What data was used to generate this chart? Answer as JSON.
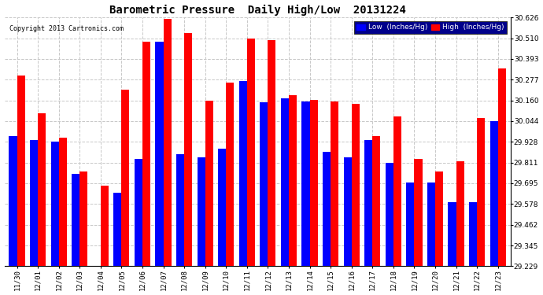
{
  "title": "Barometric Pressure  Daily High/Low  20131224",
  "copyright": "Copyright 2013 Cartronics.com",
  "legend_low": "Low  (Inches/Hg)",
  "legend_high": "High  (Inches/Hg)",
  "dates": [
    "11/30",
    "12/01",
    "12/02",
    "12/03",
    "12/04",
    "12/05",
    "12/06",
    "12/07",
    "12/08",
    "12/09",
    "12/10",
    "12/11",
    "12/12",
    "12/13",
    "12/14",
    "12/15",
    "12/16",
    "12/17",
    "12/18",
    "12/19",
    "12/20",
    "12/21",
    "12/22",
    "12/23"
  ],
  "low": [
    29.96,
    29.94,
    29.93,
    29.75,
    29.23,
    29.64,
    29.83,
    30.49,
    29.86,
    29.84,
    29.89,
    30.27,
    30.15,
    30.17,
    30.155,
    29.87,
    29.84,
    29.94,
    29.81,
    29.7,
    29.7,
    29.59,
    29.59,
    30.045
  ],
  "high": [
    30.3,
    30.09,
    29.95,
    29.76,
    29.68,
    30.22,
    30.49,
    30.62,
    30.54,
    30.16,
    30.26,
    30.51,
    30.5,
    30.19,
    30.165,
    30.155,
    30.14,
    29.96,
    30.07,
    29.83,
    29.76,
    29.82,
    30.06,
    30.34
  ],
  "ylim_min": 29.229,
  "ylim_max": 30.626,
  "yticks": [
    29.229,
    29.345,
    29.462,
    29.578,
    29.695,
    29.811,
    29.928,
    30.044,
    30.16,
    30.277,
    30.393,
    30.51,
    30.626
  ],
  "bar_width": 0.38,
  "low_color": "#0000ff",
  "high_color": "#ff0000",
  "bg_color": "#ffffff",
  "grid_color": "#c8c8c8",
  "title_fontsize": 10,
  "tick_fontsize": 6.5
}
